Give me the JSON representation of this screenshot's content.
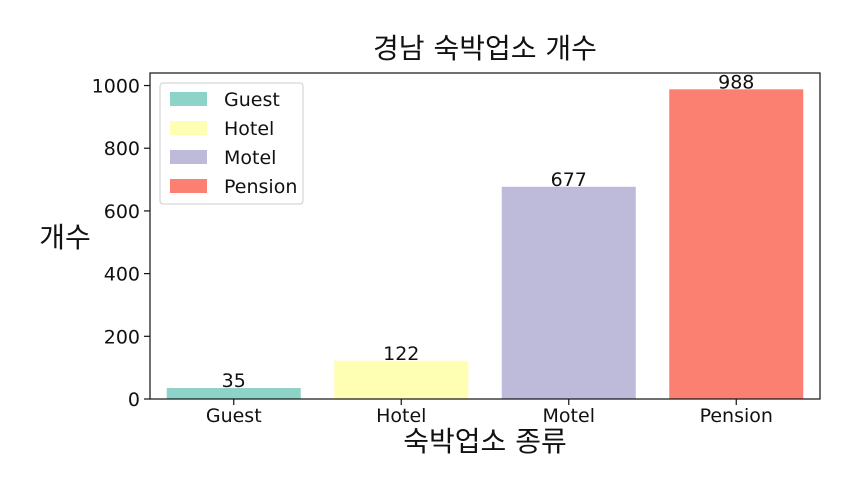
{
  "chart_data": {
    "type": "bar",
    "title": "경남 숙박업소 개수",
    "xlabel": "숙박업소 종류",
    "ylabel": "개수",
    "categories": [
      "Guest",
      "Hotel",
      "Motel",
      "Pension"
    ],
    "values": [
      35,
      122,
      677,
      988
    ],
    "data_labels": [
      "35",
      "122",
      "677",
      "988"
    ],
    "colors": [
      "#8dd3c7",
      "#ffffb3",
      "#bebada",
      "#fb8072"
    ],
    "ylim": [
      0,
      1040
    ],
    "yticks": [
      0,
      200,
      400,
      600,
      800,
      1000
    ],
    "ytick_labels": [
      "0",
      "200",
      "400",
      "600",
      "800",
      "1000"
    ],
    "grid": false,
    "legend": {
      "placement": "top-left",
      "entries": [
        "Guest",
        "Hotel",
        "Motel",
        "Pension"
      ]
    }
  }
}
